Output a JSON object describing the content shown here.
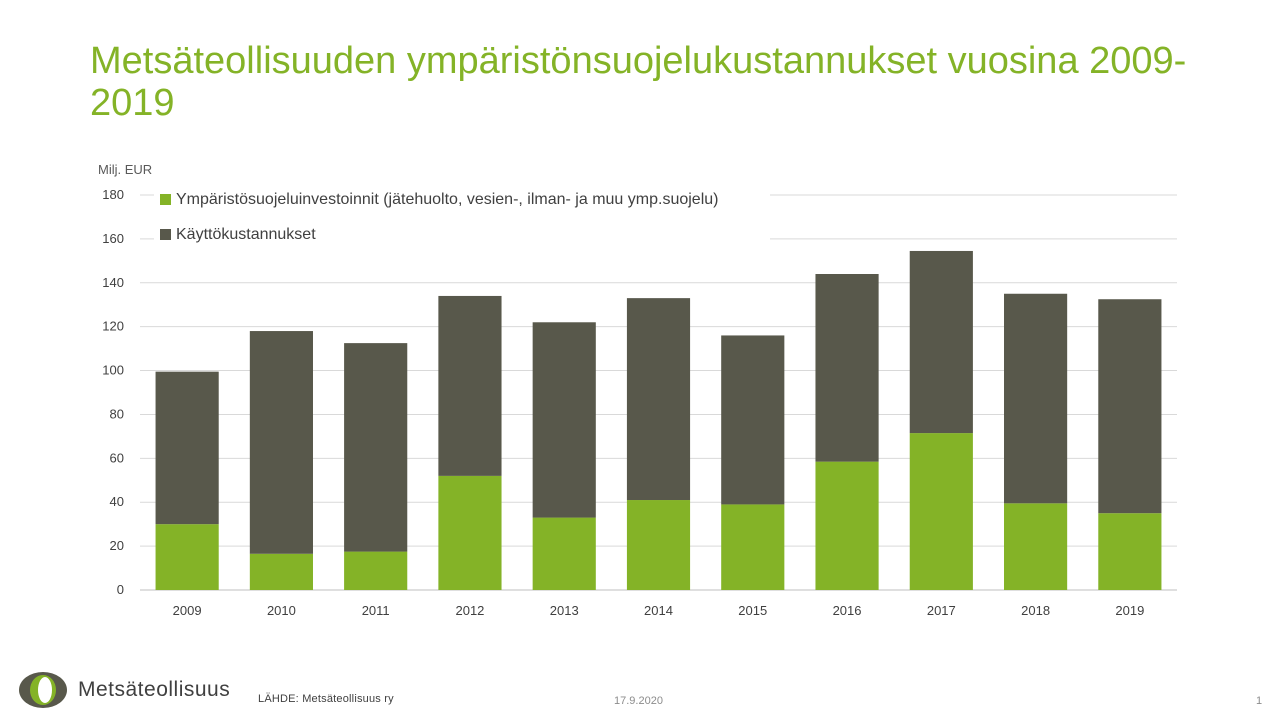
{
  "title": "Metsäteollisuuden ympäristönsuojelukustannukset vuosina 2009-2019",
  "chart_data": {
    "type": "bar",
    "stacked": true,
    "ylabel": "Milj. EUR",
    "ylim": [
      0,
      180
    ],
    "yticks": [
      0,
      20,
      40,
      60,
      80,
      100,
      120,
      140,
      160,
      180
    ],
    "grid": true,
    "legend_position": "top-left",
    "categories": [
      "2009",
      "2010",
      "2011",
      "2012",
      "2013",
      "2014",
      "2015",
      "2016",
      "2017",
      "2018",
      "2019"
    ],
    "series": [
      {
        "name": "Ympäristösuojeluinvestoinnit (jätehuolto, vesien-, ilman- ja muu ymp.suojelu)",
        "color": "#84b327",
        "values": [
          30,
          16.5,
          17.5,
          52,
          33,
          41,
          39,
          58.5,
          71.5,
          39.5,
          35
        ]
      },
      {
        "name": "Käyttökustannukset",
        "color": "#58584b",
        "values": [
          69.5,
          101.5,
          95,
          82,
          89,
          92,
          77,
          85.5,
          83,
          95.5,
          97.5
        ]
      }
    ]
  },
  "footer": {
    "logo_text": "Metsäteollisuus",
    "source": "LÄHDE:  Metsäteollisuus ry",
    "date": "17.9.2020",
    "page": "1"
  }
}
